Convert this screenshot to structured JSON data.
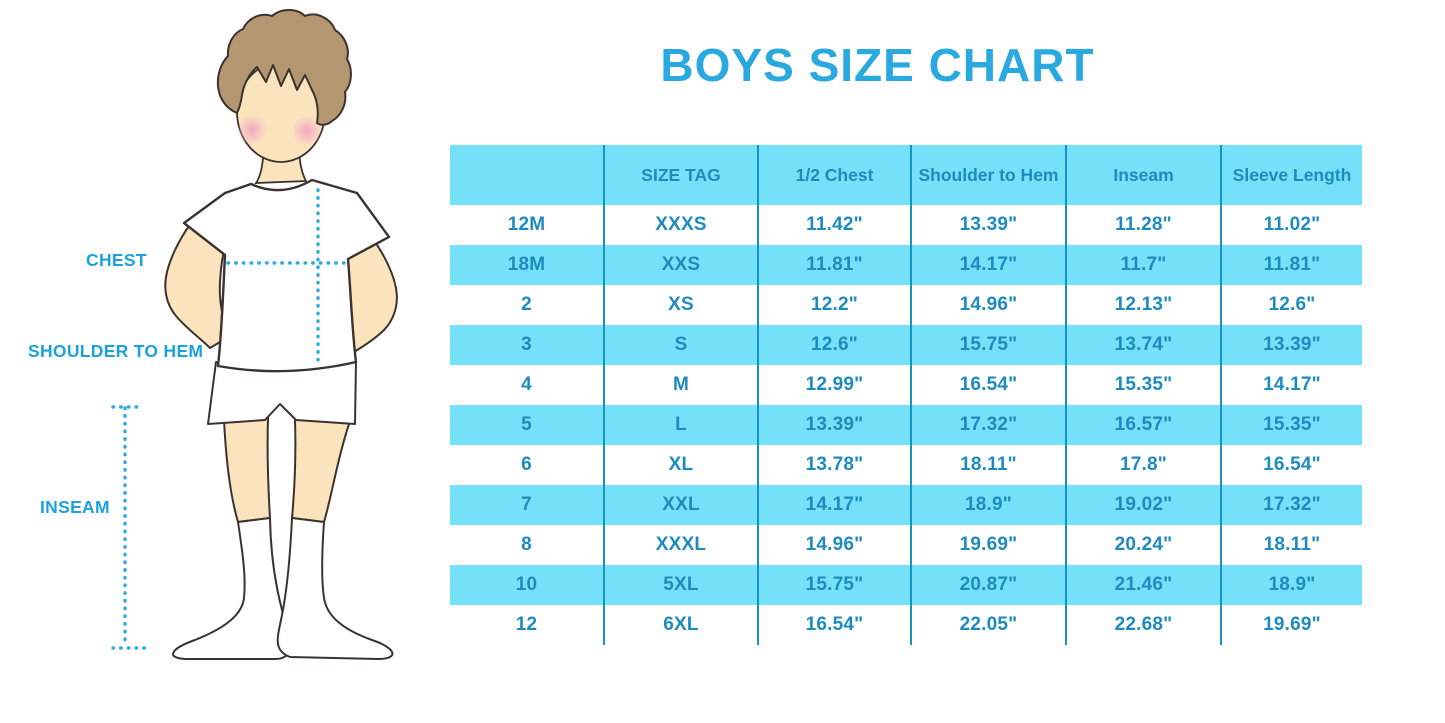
{
  "title": "BOYS SIZE CHART",
  "figure_labels": {
    "chest": "CHEST",
    "shoulder_to_hem": "SHOULDER TO HEM",
    "inseam": "INSEAM"
  },
  "colors": {
    "title_blue": "#29A9E0",
    "table_row_cyan": "#74E1F9",
    "table_text_blue": "#1E8BBE",
    "column_divider": "#1793C3",
    "figure_label_blue": "#1BA2DE",
    "dotted_measure_line": "#2AACE3",
    "skin": "#FAE3BD",
    "hair": "#B49770",
    "cheek_pink": "#F2A2B9"
  },
  "chart_data": {
    "type": "table",
    "title": "BOYS SIZE CHART",
    "columns": [
      "",
      "SIZE TAG",
      "1/2 Chest",
      "Shoulder to Hem",
      "Inseam",
      "Sleeve Length"
    ],
    "rows": [
      [
        "12M",
        "XXXS",
        "11.42\"",
        "13.39\"",
        "11.28\"",
        "11.02\""
      ],
      [
        "18M",
        "XXS",
        "11.81\"",
        "14.17\"",
        "11.7\"",
        "11.81\""
      ],
      [
        "2",
        "XS",
        "12.2\"",
        "14.96\"",
        "12.13\"",
        "12.6\""
      ],
      [
        "3",
        "S",
        "12.6\"",
        "15.75\"",
        "13.74\"",
        "13.39\""
      ],
      [
        "4",
        "M",
        "12.99\"",
        "16.54\"",
        "15.35\"",
        "14.17\""
      ],
      [
        "5",
        "L",
        "13.39\"",
        "17.32\"",
        "16.57\"",
        "15.35\""
      ],
      [
        "6",
        "XL",
        "13.78\"",
        "18.11\"",
        "17.8\"",
        "16.54\""
      ],
      [
        "7",
        "XXL",
        "14.17\"",
        "18.9\"",
        "19.02\"",
        "17.32\""
      ],
      [
        "8",
        "XXXL",
        "14.96\"",
        "19.69\"",
        "20.24\"",
        "18.11\""
      ],
      [
        "10",
        "5XL",
        "15.75\"",
        "20.87\"",
        "21.46\"",
        "18.9\""
      ],
      [
        "12",
        "6XL",
        "16.54\"",
        "22.05\"",
        "22.68\"",
        "19.69\""
      ]
    ]
  }
}
